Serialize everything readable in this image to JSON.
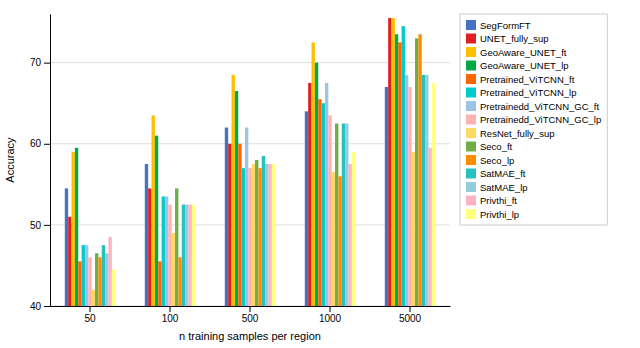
{
  "chart_data": {
    "type": "bar",
    "categories": [
      "50",
      "100",
      "500",
      "1000",
      "5000"
    ],
    "series": [
      {
        "name": "SegFormFT",
        "color": "#4472C4",
        "values": [
          54.5,
          57.5,
          62.0,
          64.0,
          67.0
        ]
      },
      {
        "name": "UNET_fully_sup",
        "color": "#E02020",
        "values": [
          51.0,
          54.5,
          60.0,
          67.5,
          75.5
        ]
      },
      {
        "name": "GeoAware_UNET_ft",
        "color": "#FFC000",
        "values": [
          59.0,
          63.5,
          68.5,
          72.5,
          75.5
        ]
      },
      {
        "name": "GeoAware_UNET_lp",
        "color": "#00AA44",
        "values": [
          59.5,
          61.0,
          66.5,
          70.0,
          73.5
        ]
      },
      {
        "name": "Pretrained_ViTCNN_ft",
        "color": "#FF6600",
        "values": [
          45.5,
          45.5,
          60.0,
          65.5,
          72.5
        ]
      },
      {
        "name": "Pretrained_ViTCNN_lp",
        "color": "#00CCCC",
        "values": [
          47.5,
          53.5,
          57.0,
          65.0,
          74.5
        ]
      },
      {
        "name": "Pretrainedd_ViTCNN_GC_ft",
        "color": "#9DC3E6",
        "values": [
          47.5,
          53.5,
          62.0,
          67.5,
          68.5
        ]
      },
      {
        "name": "Pretrainedd_ViTCNN_GC_lp",
        "color": "#FFB3B3",
        "values": [
          46.0,
          52.5,
          57.0,
          63.5,
          67.0
        ]
      },
      {
        "name": "ResNet_fully_sup",
        "color": "#FFD966",
        "values": [
          42.0,
          49.0,
          57.5,
          56.5,
          59.0
        ]
      },
      {
        "name": "Seco_ft",
        "color": "#70AD47",
        "values": [
          46.5,
          54.5,
          58.0,
          62.5,
          73.0
        ]
      },
      {
        "name": "Seco_lp",
        "color": "#FF8C00",
        "values": [
          46.0,
          46.0,
          57.0,
          56.0,
          73.5
        ]
      },
      {
        "name": "SatMAE_ft",
        "color": "#26C0C0",
        "values": [
          47.5,
          52.5,
          58.5,
          62.5,
          68.5
        ]
      },
      {
        "name": "SatMAE_lp",
        "color": "#92CDDC",
        "values": [
          46.5,
          52.5,
          57.5,
          62.5,
          68.5
        ]
      },
      {
        "name": "Privthi_ft",
        "color": "#FFB3C0",
        "values": [
          48.5,
          52.5,
          57.5,
          57.5,
          59.5
        ]
      },
      {
        "name": "Privthi_lp",
        "color": "#FFFF80",
        "values": [
          44.5,
          52.5,
          57.5,
          59.0,
          67.5
        ]
      }
    ],
    "xlabel": "n training samples per region",
    "ylabel": "Accuracy",
    "ylim": [
      40,
      76
    ],
    "yticks": [
      40,
      50,
      60,
      70
    ],
    "grid": true,
    "legend": "right"
  }
}
